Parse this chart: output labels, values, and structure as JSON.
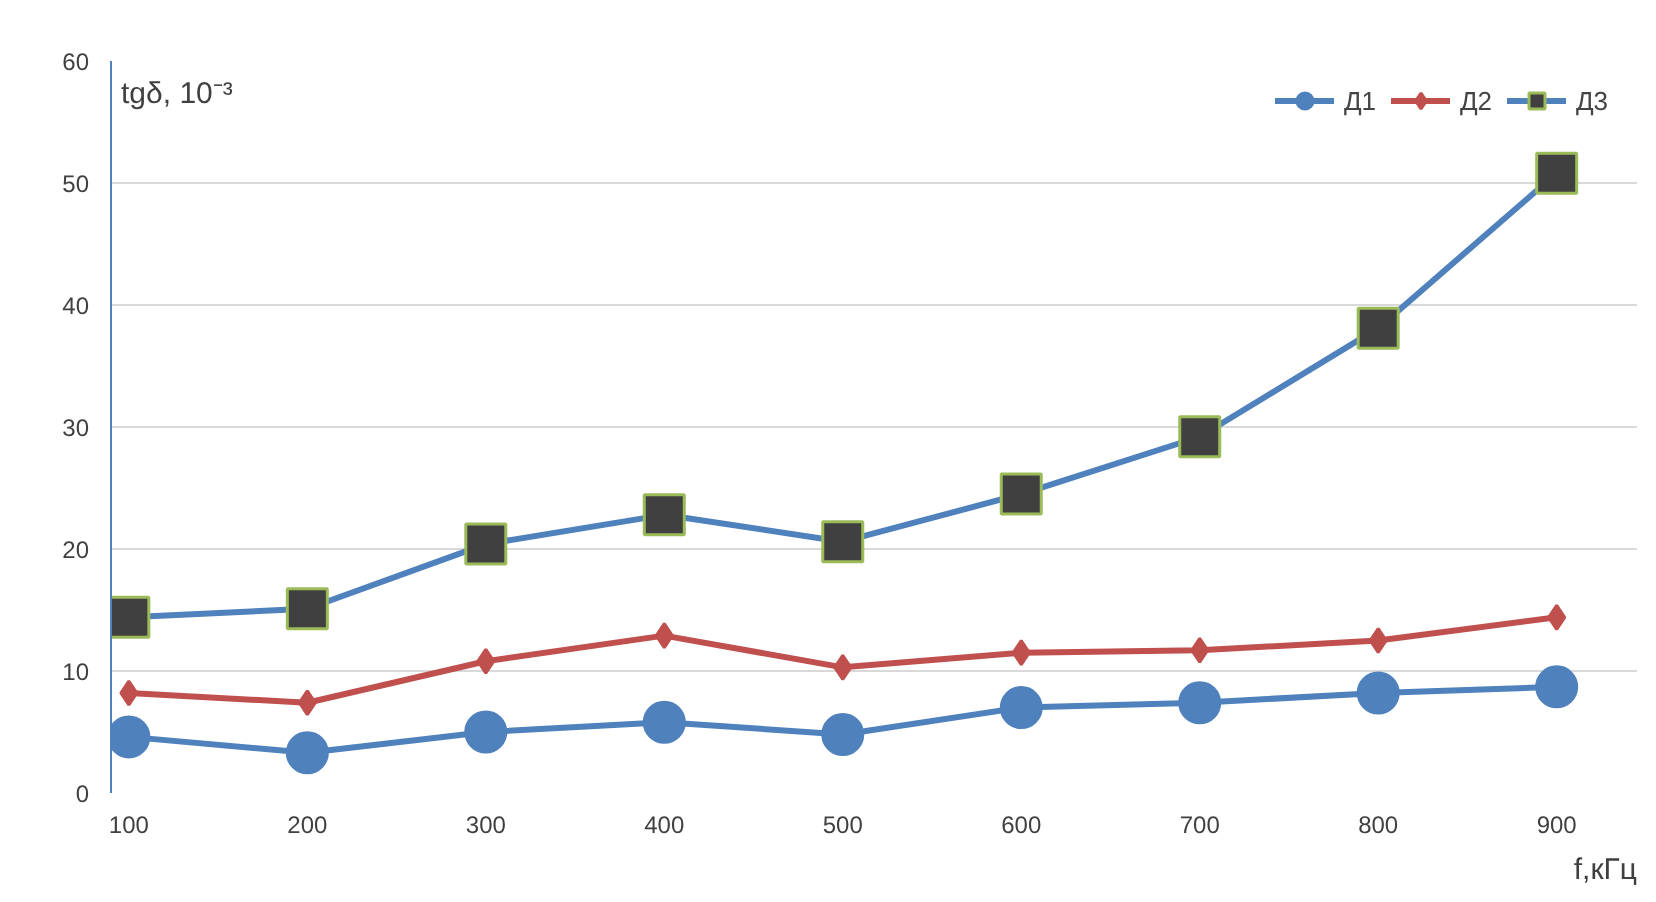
{
  "chart_data": {
    "type": "line",
    "xlabel": "f,кГц",
    "ylabel": "tgδ, 10⁻³",
    "categories": [
      "100",
      "200",
      "300",
      "400",
      "500",
      "600",
      "700",
      "800",
      "900"
    ],
    "ylim": [
      0,
      60
    ],
    "yticks": [
      0,
      10,
      20,
      30,
      40,
      50,
      60
    ],
    "grid": "y",
    "legend": "top right",
    "series": [
      {
        "name": "Д1",
        "color": "#4f81bd",
        "marker": "circle",
        "values": [
          4.6,
          3.3,
          5.0,
          5.8,
          4.8,
          7.0,
          7.4,
          8.2,
          8.7
        ]
      },
      {
        "name": "Д2",
        "color": "#c0504d",
        "marker": "diamond",
        "values": [
          8.2,
          7.4,
          10.8,
          12.9,
          10.3,
          11.5,
          11.7,
          12.5,
          14.4
        ]
      },
      {
        "name": "Д3",
        "color": "#4f81bd",
        "marker": "square",
        "colors": [
          "#404040",
          "#404040",
          "#404040",
          "#404040",
          "#404040",
          "#404040",
          "#404040",
          "#404040",
          "#404040"
        ],
        "values": [
          14.4,
          15.1,
          20.4,
          22.8,
          20.6,
          24.5,
          29.2,
          38.1,
          50.8
        ]
      }
    ]
  }
}
